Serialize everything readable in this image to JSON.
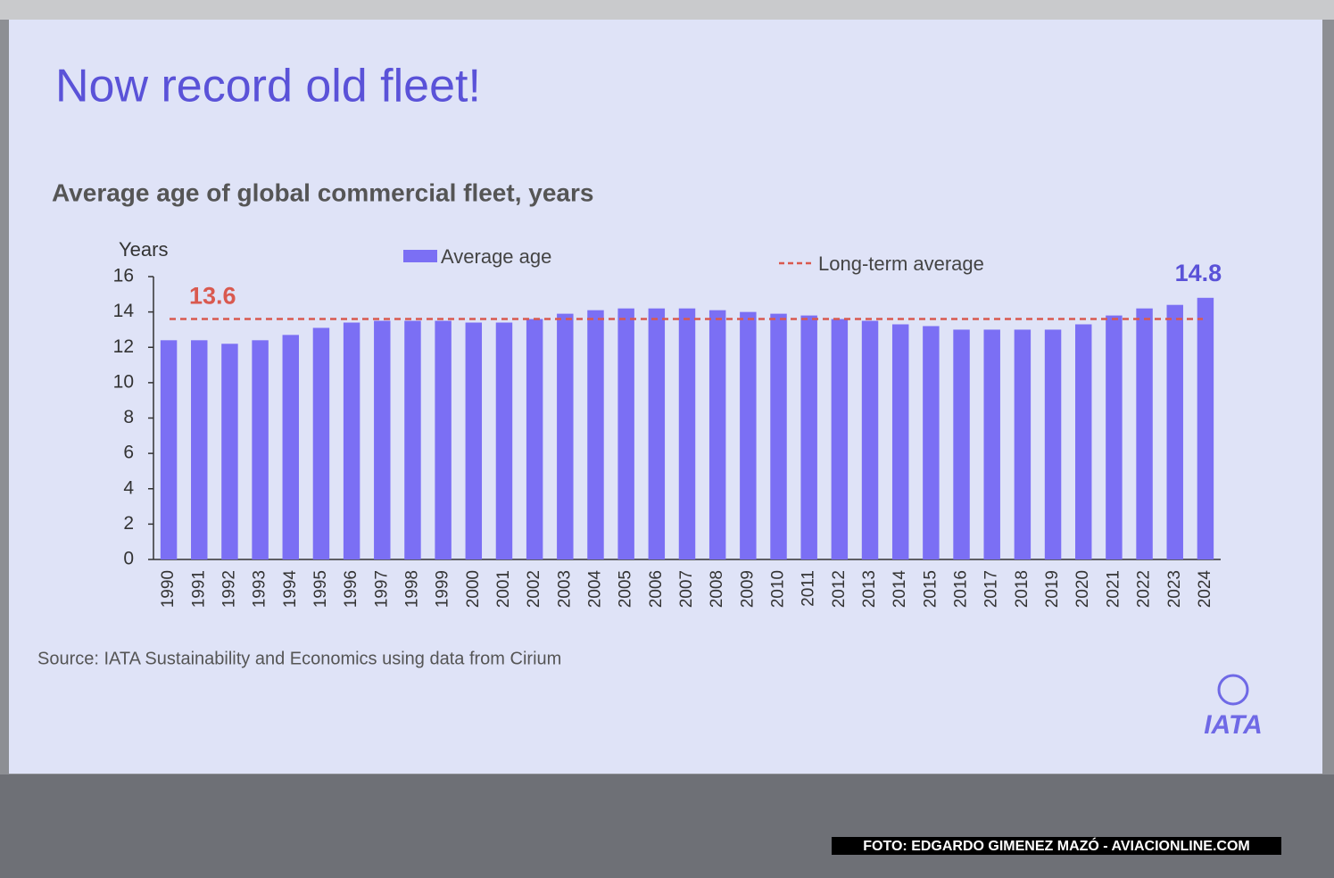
{
  "slide_title": "Now record old fleet!",
  "logo": "IATA",
  "watermark": "FOTO: EDGARDO GIMENEZ MAZÓ - AVIACIONLINE.COM",
  "chart_data": {
    "type": "bar",
    "title": "Average age of global commercial fleet, years",
    "y_label": "Years",
    "source": "Source: IATA Sustainability and Economics using data from Cirium",
    "categories": [
      "1990",
      "1991",
      "1992",
      "1993",
      "1994",
      "1995",
      "1996",
      "1997",
      "1998",
      "1999",
      "2000",
      "2001",
      "2002",
      "2003",
      "2004",
      "2005",
      "2006",
      "2007",
      "2008",
      "2009",
      "2010",
      "2011",
      "2012",
      "2013",
      "2014",
      "2015",
      "2016",
      "2017",
      "2018",
      "2019",
      "2020",
      "2021",
      "2022",
      "2023",
      "2024"
    ],
    "series": [
      {
        "name": "Average age",
        "color": "#7b6ff4",
        "values": [
          12.4,
          12.4,
          12.2,
          12.4,
          12.7,
          13.1,
          13.4,
          13.5,
          13.5,
          13.5,
          13.4,
          13.4,
          13.6,
          13.9,
          14.1,
          14.2,
          14.2,
          14.2,
          14.1,
          14.0,
          13.9,
          13.8,
          13.6,
          13.5,
          13.3,
          13.2,
          13.0,
          13.0,
          13.0,
          13.0,
          13.3,
          13.8,
          14.2,
          14.4,
          14.8
        ]
      }
    ],
    "reference_line": {
      "name": "Long-term average",
      "value": 13.6,
      "color": "#d9594f"
    },
    "ylim": [
      0,
      16
    ],
    "yticks": [
      0,
      2,
      4,
      6,
      8,
      10,
      12,
      14,
      16
    ]
  }
}
